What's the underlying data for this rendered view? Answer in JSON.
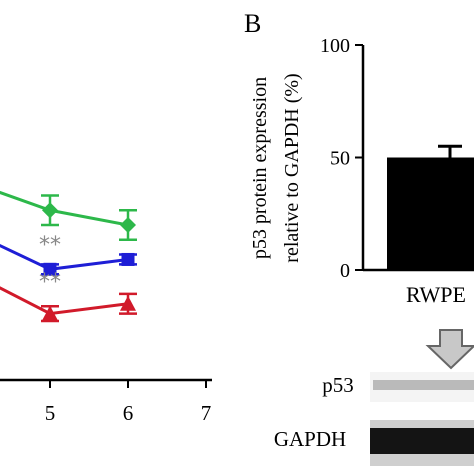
{
  "chart_data": [
    {
      "panel_label": "",
      "type": "line",
      "title": "",
      "xlabel": "",
      "ylabel": "",
      "x_ticks": [
        5,
        6,
        7
      ],
      "x_tick_labels": [
        "5",
        "6",
        "7"
      ],
      "xlim": [
        4.4,
        7
      ],
      "ylim": [
        0,
        100
      ],
      "series": [
        {
          "color": "#2db84a",
          "marker": "diamond",
          "x": [
            4.2,
            5,
            6
          ],
          "y": [
            78,
            69,
            63
          ],
          "err": [
            0,
            6,
            6
          ]
        },
        {
          "color": "#1e1ed6",
          "marker": "square",
          "x": [
            4.2,
            5,
            6
          ],
          "y": [
            57,
            45,
            49
          ],
          "err": [
            0,
            2,
            2
          ]
        },
        {
          "color": "#d11a2a",
          "marker": "triangle",
          "x": [
            4.2,
            5,
            6
          ],
          "y": [
            40,
            27,
            31
          ],
          "err": [
            0,
            3,
            4
          ]
        }
      ],
      "annotations": [
        {
          "text": "**",
          "x": 5,
          "y": 52
        },
        {
          "text": "**",
          "x": 5,
          "y": 37
        }
      ]
    },
    {
      "panel_label": "B",
      "type": "bar",
      "title": "",
      "ylabel_line1": "p53 protein expression",
      "ylabel_line2": "relative to GAPDH (%)",
      "y_ticks": [
        0,
        50,
        100
      ],
      "y_tick_labels": [
        "0",
        "50",
        "100"
      ],
      "ylim": [
        0,
        100
      ],
      "categories": [
        "RWPE"
      ],
      "values": [
        50
      ],
      "err": [
        5
      ],
      "bar_color": "#000000"
    }
  ],
  "blot": {
    "rows": [
      {
        "label": "p53"
      },
      {
        "label": "GAPDH"
      }
    ]
  }
}
